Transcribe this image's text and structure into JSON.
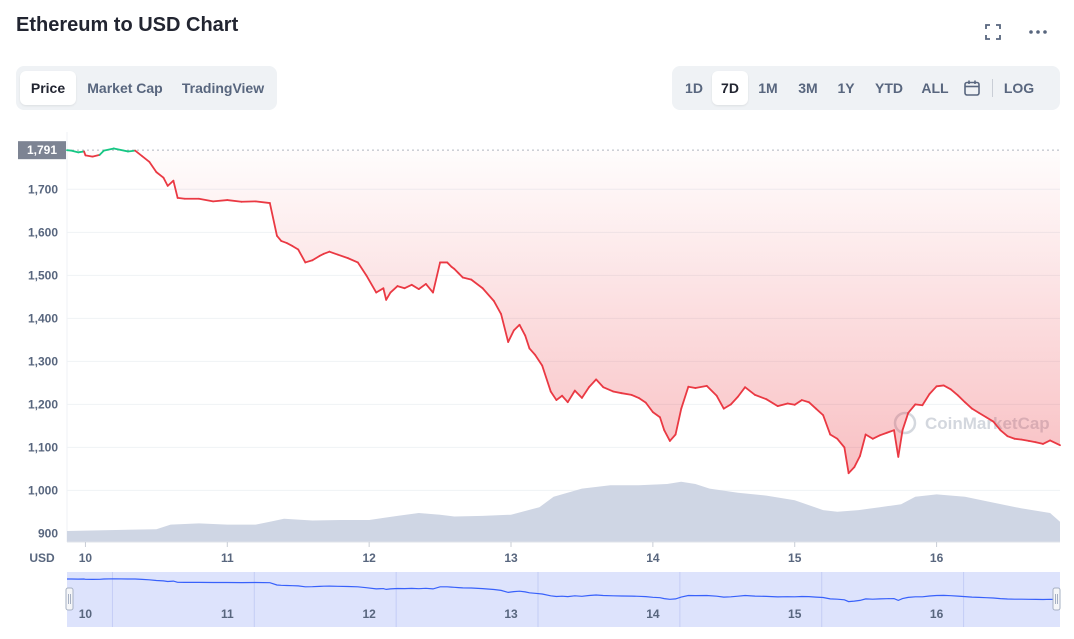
{
  "header": {
    "title": "Ethereum to USD Chart"
  },
  "icons": {
    "expand": "expand-icon",
    "more": "more-icon",
    "calendar": "calendar-icon"
  },
  "tabs": [
    {
      "label": "Price",
      "active": true
    },
    {
      "label": "Market Cap",
      "active": false
    },
    {
      "label": "TradingView",
      "active": false
    }
  ],
  "ranges": [
    {
      "label": "1D",
      "active": false
    },
    {
      "label": "7D",
      "active": true
    },
    {
      "label": "1M",
      "active": false
    },
    {
      "label": "3M",
      "active": false
    },
    {
      "label": "1Y",
      "active": false
    },
    {
      "label": "YTD",
      "active": false
    },
    {
      "label": "ALL",
      "active": false
    }
  ],
  "scale_button": "LOG",
  "watermark": "CoinMarketCap",
  "colors": {
    "down": "#ea3943",
    "up": "#16c784",
    "volume": "#cfd6e4",
    "navigator_line": "#3861fb",
    "navigator_fill": "#dde3fc"
  },
  "chart_data": {
    "type": "line",
    "ylabel": "USD",
    "y_ticks": [
      900,
      1000,
      1100,
      1200,
      1300,
      1400,
      1500,
      1600,
      1700
    ],
    "ylim": [
      880,
      1810
    ],
    "x_ticks": [
      "10",
      "11",
      "12",
      "13",
      "14",
      "15",
      "16"
    ],
    "xlim": [
      9.87,
      16.87
    ],
    "current_price_label": "1,791",
    "current_price": 1791,
    "series": [
      {
        "x": [
          9.87,
          9.9,
          9.95,
          9.99,
          10.0,
          10.05,
          10.1,
          10.13,
          10.2,
          10.3,
          10.35,
          10.4,
          10.45,
          10.5,
          10.55,
          10.58,
          10.62,
          10.65,
          10.7,
          10.8,
          10.9,
          11.0,
          11.1,
          11.2,
          11.3,
          11.35,
          11.38,
          11.42,
          11.46,
          11.5,
          11.55,
          11.6,
          11.65,
          11.68,
          11.72,
          11.78,
          11.85,
          11.92,
          11.98,
          12.05,
          12.1,
          12.12,
          12.15,
          12.2,
          12.25,
          12.3,
          12.35,
          12.4,
          12.45,
          12.5,
          12.55,
          12.58,
          12.6,
          12.63,
          12.66,
          12.72,
          12.8,
          12.88,
          12.93,
          12.98,
          13.02,
          13.06,
          13.1,
          13.13,
          13.17,
          13.22,
          13.28,
          13.32,
          13.36,
          13.4,
          13.45,
          13.5,
          13.55,
          13.6,
          13.65,
          13.72,
          13.78,
          13.85,
          13.9,
          13.95,
          14.0,
          14.05,
          14.08,
          14.12,
          14.16,
          14.2,
          14.25,
          14.3,
          14.38,
          14.45,
          14.5,
          14.55,
          14.6,
          14.65,
          14.72,
          14.8,
          14.88,
          14.95,
          15.0,
          15.05,
          15.1,
          15.15,
          15.2,
          15.25,
          15.3,
          15.35,
          15.38,
          15.42,
          15.46,
          15.5,
          15.55,
          15.6,
          15.65,
          15.7,
          15.73,
          15.76,
          15.8,
          15.85,
          15.9,
          15.95,
          16.0,
          16.05,
          16.1,
          16.15,
          16.2,
          16.25,
          16.3,
          16.35,
          16.4,
          16.45,
          16.5,
          16.55,
          16.6,
          16.65,
          16.7,
          16.75,
          16.8,
          16.87
        ],
        "y": [
          1791,
          1790,
          1786,
          1788,
          1779,
          1776,
          1780,
          1790,
          1795,
          1788,
          1790,
          1777,
          1764,
          1740,
          1727,
          1708,
          1720,
          1680,
          1678,
          1678,
          1672,
          1675,
          1671,
          1672,
          1668,
          1592,
          1580,
          1575,
          1568,
          1560,
          1530,
          1535,
          1545,
          1550,
          1555,
          1548,
          1540,
          1530,
          1500,
          1460,
          1470,
          1443,
          1460,
          1475,
          1470,
          1478,
          1468,
          1480,
          1460,
          1530,
          1530,
          1520,
          1515,
          1505,
          1495,
          1490,
          1470,
          1440,
          1410,
          1345,
          1372,
          1385,
          1360,
          1330,
          1315,
          1290,
          1230,
          1210,
          1220,
          1205,
          1232,
          1215,
          1240,
          1258,
          1240,
          1230,
          1226,
          1222,
          1215,
          1204,
          1182,
          1170,
          1140,
          1115,
          1130,
          1190,
          1241,
          1238,
          1243,
          1220,
          1190,
          1200,
          1218,
          1240,
          1222,
          1212,
          1196,
          1202,
          1199,
          1210,
          1205,
          1190,
          1175,
          1130,
          1120,
          1100,
          1040,
          1054,
          1080,
          1130,
          1120,
          1128,
          1134,
          1140,
          1078,
          1140,
          1180,
          1200,
          1198,
          1224,
          1242,
          1244,
          1235,
          1221,
          1205,
          1190,
          1180,
          1170,
          1160,
          1140,
          1126,
          1120,
          1118,
          1115,
          1112,
          1108,
          1116,
          1105
        ]
      }
    ],
    "volume": {
      "x": [
        9.87,
        10.5,
        10.6,
        10.8,
        11.0,
        11.2,
        11.3,
        11.4,
        11.6,
        11.8,
        12.0,
        12.2,
        12.35,
        12.5,
        12.6,
        12.8,
        13.0,
        13.2,
        13.3,
        13.5,
        13.7,
        13.9,
        14.1,
        14.2,
        14.3,
        14.4,
        14.6,
        14.8,
        15.0,
        15.2,
        15.3,
        15.45,
        15.6,
        15.75,
        15.85,
        16.0,
        16.2,
        16.4,
        16.6,
        16.8,
        16.87
      ],
      "level": [
        0.19,
        0.22,
        0.3,
        0.32,
        0.3,
        0.3,
        0.35,
        0.4,
        0.37,
        0.38,
        0.38,
        0.45,
        0.5,
        0.47,
        0.44,
        0.45,
        0.47,
        0.6,
        0.78,
        0.92,
        0.98,
        0.98,
        1.0,
        1.04,
        1.0,
        0.92,
        0.85,
        0.8,
        0.72,
        0.55,
        0.52,
        0.55,
        0.6,
        0.65,
        0.78,
        0.82,
        0.78,
        0.68,
        0.58,
        0.5,
        0.35
      ]
    }
  }
}
